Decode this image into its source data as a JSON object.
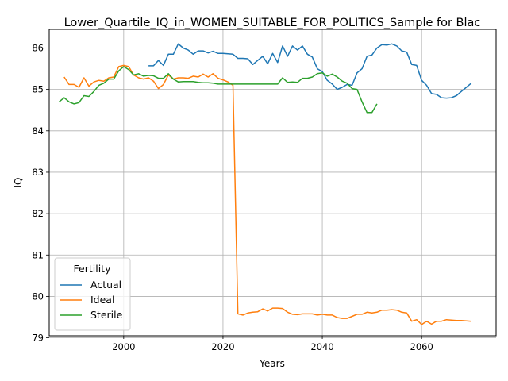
{
  "chart_data": {
    "type": "line",
    "title": "Lower_Quartile_IQ_in_WOMEN_SUITABLE_FOR_POLITICS_Sample for Blac",
    "xlabel": "Years",
    "ylabel": "IQ",
    "xlim": [
      1985,
      2075
    ],
    "ylim": [
      79.05,
      86.45
    ],
    "xticks": [
      2000,
      2020,
      2040,
      2060
    ],
    "yticks": [
      79,
      80,
      81,
      82,
      83,
      84,
      85,
      86
    ],
    "grid": true,
    "legend": {
      "title": "Fertility",
      "placement": "lower-left"
    },
    "series": [
      {
        "name": "Actual",
        "color": "#1f77b4",
        "x": [
          2005,
          2006,
          2007,
          2008,
          2009,
          2010,
          2011,
          2012,
          2013,
          2014,
          2015,
          2016,
          2017,
          2018,
          2019,
          2020,
          2021,
          2022,
          2023,
          2024,
          2025,
          2026,
          2027,
          2028,
          2029,
          2030,
          2031,
          2032,
          2033,
          2034,
          2035,
          2036,
          2037,
          2038,
          2039,
          2040,
          2041,
          2042,
          2043,
          2044,
          2045,
          2046,
          2047,
          2048,
          2049,
          2050,
          2051,
          2052,
          2053,
          2054,
          2055,
          2056,
          2057,
          2058,
          2059,
          2060,
          2061,
          2062,
          2063,
          2064,
          2065,
          2066,
          2067,
          2068,
          2069,
          2070
        ],
        "y": [
          85.57,
          85.57,
          85.7,
          85.58,
          85.85,
          85.85,
          86.1,
          86.0,
          85.95,
          85.85,
          85.93,
          85.93,
          85.88,
          85.92,
          85.87,
          85.87,
          85.86,
          85.85,
          85.75,
          85.75,
          85.74,
          85.6,
          85.7,
          85.8,
          85.62,
          85.87,
          85.65,
          86.05,
          85.8,
          86.05,
          85.95,
          86.05,
          85.85,
          85.78,
          85.5,
          85.43,
          85.22,
          85.13,
          85.0,
          85.05,
          85.12,
          85.1,
          85.4,
          85.5,
          85.8,
          85.83,
          86.0,
          86.08,
          86.07,
          86.1,
          86.05,
          85.93,
          85.9,
          85.6,
          85.58,
          85.22,
          85.1,
          84.9,
          84.88,
          84.8,
          84.79,
          84.8,
          84.85,
          84.95,
          85.05,
          85.15
        ]
      },
      {
        "name": "Ideal",
        "color": "#ff7f0e",
        "x": [
          1988,
          1989,
          1990,
          1991,
          1992,
          1993,
          1994,
          1995,
          1996,
          1997,
          1998,
          1999,
          2000,
          2001,
          2002,
          2003,
          2004,
          2005,
          2006,
          2007,
          2008,
          2009,
          2010,
          2011,
          2012,
          2013,
          2014,
          2015,
          2016,
          2017,
          2018,
          2019,
          2020,
          2021,
          2022,
          2023,
          2024,
          2025,
          2026,
          2027,
          2028,
          2029,
          2030,
          2031,
          2032,
          2033,
          2034,
          2035,
          2036,
          2037,
          2038,
          2039,
          2040,
          2041,
          2042,
          2043,
          2044,
          2045,
          2046,
          2047,
          2048,
          2049,
          2050,
          2051,
          2052,
          2053,
          2054,
          2055,
          2056,
          2057,
          2058,
          2059,
          2060,
          2061,
          2062,
          2063,
          2064,
          2065,
          2066,
          2067,
          2068,
          2069,
          2070
        ],
        "y": [
          85.3,
          85.12,
          85.12,
          85.05,
          85.28,
          85.08,
          85.18,
          85.22,
          85.2,
          85.28,
          85.3,
          85.55,
          85.58,
          85.55,
          85.35,
          85.28,
          85.25,
          85.28,
          85.2,
          85.02,
          85.12,
          85.35,
          85.25,
          85.28,
          85.28,
          85.27,
          85.32,
          85.3,
          85.37,
          85.3,
          85.38,
          85.27,
          85.23,
          85.18,
          85.1,
          79.58,
          79.55,
          79.6,
          79.62,
          79.63,
          79.7,
          79.65,
          79.72,
          79.72,
          79.71,
          79.62,
          79.57,
          79.56,
          79.58,
          79.58,
          79.58,
          79.55,
          79.57,
          79.55,
          79.55,
          79.49,
          79.47,
          79.47,
          79.52,
          79.57,
          79.57,
          79.62,
          79.6,
          79.62,
          79.67,
          79.67,
          79.68,
          79.67,
          79.62,
          79.6,
          79.4,
          79.44,
          79.32,
          79.4,
          79.33,
          79.4,
          79.4,
          79.44,
          79.43,
          79.42,
          79.42,
          79.41,
          79.4
        ]
      },
      {
        "name": "Sterile",
        "color": "#2ca02c",
        "x": [
          1987,
          1988,
          1989,
          1990,
          1991,
          1992,
          1993,
          1994,
          1995,
          1996,
          1997,
          1998,
          1999,
          2000,
          2001,
          2002,
          2003,
          2004,
          2005,
          2006,
          2007,
          2008,
          2009,
          2010,
          2011,
          2012,
          2013,
          2014,
          2015,
          2016,
          2017,
          2018,
          2019,
          2020,
          2021,
          2022,
          2023,
          2024,
          2025,
          2026,
          2027,
          2028,
          2029,
          2030,
          2031,
          2032,
          2033,
          2034,
          2035,
          2036,
          2037,
          2038,
          2039,
          2040,
          2041,
          2042,
          2043,
          2044,
          2045,
          2046,
          2047,
          2048,
          2049,
          2050,
          2051
        ],
        "y": [
          84.7,
          84.8,
          84.7,
          84.65,
          84.68,
          84.85,
          84.83,
          84.95,
          85.1,
          85.15,
          85.25,
          85.25,
          85.45,
          85.55,
          85.48,
          85.35,
          85.38,
          85.32,
          85.34,
          85.33,
          85.27,
          85.27,
          85.38,
          85.25,
          85.18,
          85.19,
          85.19,
          85.19,
          85.17,
          85.16,
          85.16,
          85.15,
          85.13,
          85.13,
          85.13,
          85.13,
          85.13,
          85.13,
          85.13,
          85.13,
          85.13,
          85.13,
          85.13,
          85.13,
          85.13,
          85.28,
          85.17,
          85.18,
          85.17,
          85.27,
          85.27,
          85.3,
          85.38,
          85.4,
          85.32,
          85.37,
          85.3,
          85.2,
          85.15,
          85.02,
          85.0,
          84.7,
          84.44,
          84.44,
          84.65
        ]
      }
    ]
  }
}
